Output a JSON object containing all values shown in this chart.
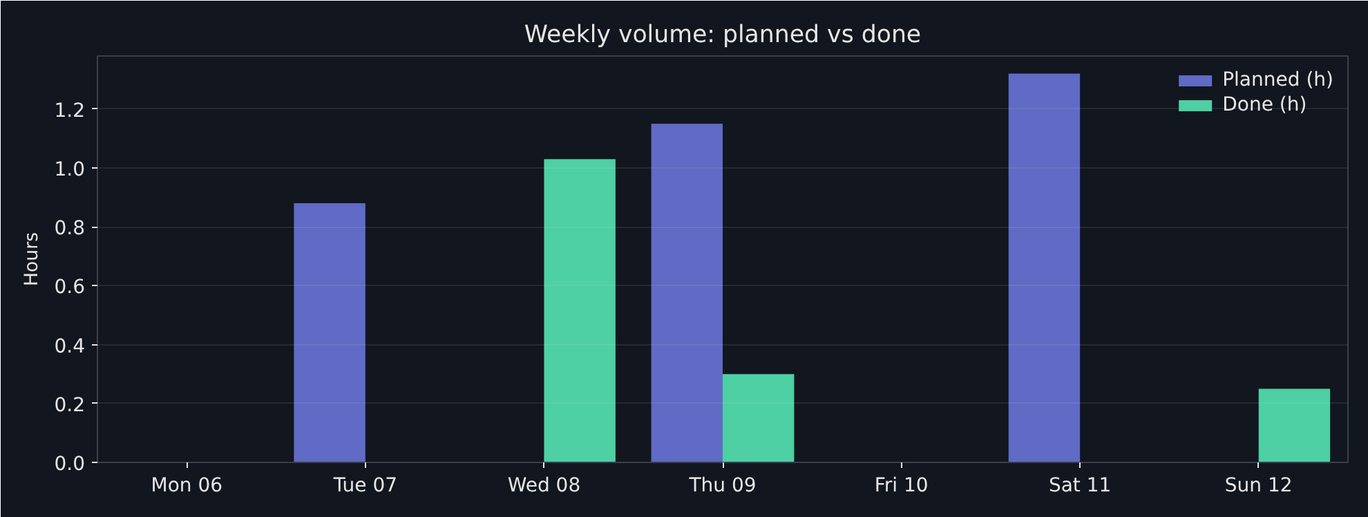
{
  "chart_data": {
    "type": "bar",
    "title": "Weekly volume: planned vs done",
    "ylabel": "Hours",
    "categories": [
      "Mon 06",
      "Tue 07",
      "Wed 08",
      "Thu 09",
      "Fri 10",
      "Sat 11",
      "Sun 12"
    ],
    "series": [
      {
        "name": "Planned (h)",
        "color": "#5f6bc4",
        "values": [
          0,
          0.88,
          0,
          1.15,
          0,
          1.32,
          0
        ]
      },
      {
        "name": "Done (h)",
        "color": "#4ecfa4",
        "values": [
          0,
          0,
          1.03,
          0.3,
          0,
          0,
          0.25
        ]
      }
    ],
    "ylim": [
      0,
      1.38
    ],
    "yticks": [
      {
        "value": 0,
        "label": "0.0"
      },
      0.2,
      0.4,
      0.6,
      0.8,
      {
        "value": 1,
        "label": "1.0"
      },
      1.2
    ],
    "grid": "y",
    "legend": "top right"
  }
}
